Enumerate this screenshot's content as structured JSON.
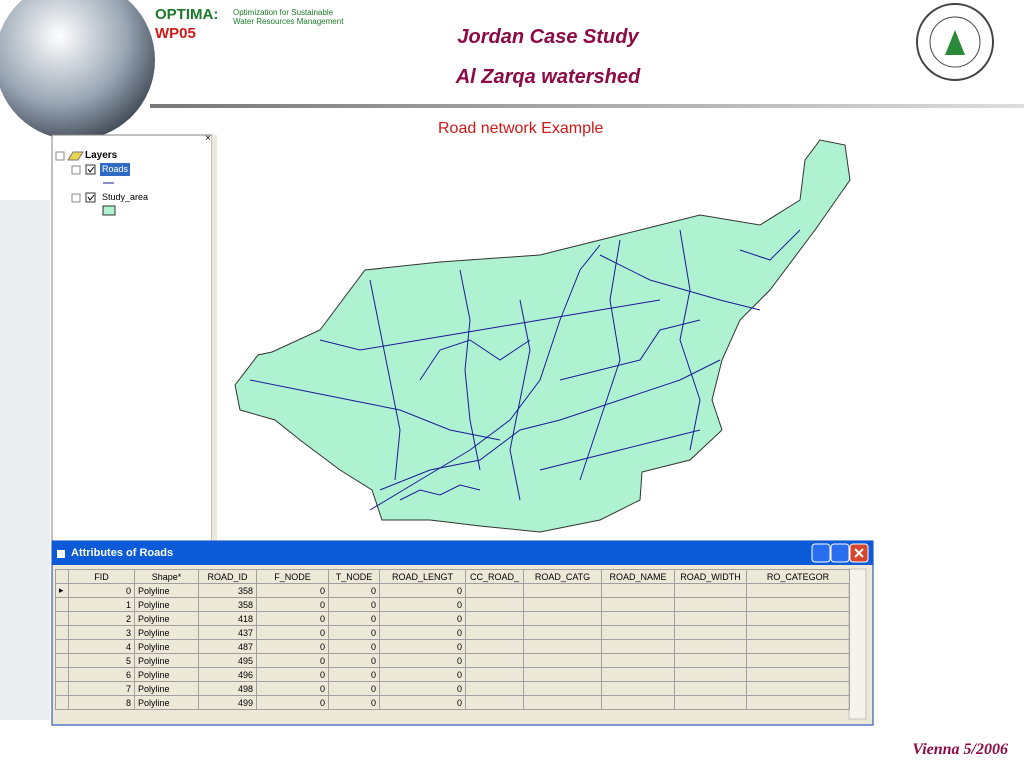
{
  "header": {
    "logo_name": "OPTIMA:",
    "project": "WP05",
    "tagline": [
      "Optimization for Sustainable",
      "Water Resources Management"
    ],
    "title": "Jordan Case Study",
    "subtitle": "Al Zarqa watershed"
  },
  "slide_heading": "Road network Example",
  "toc": {
    "root": "Layers",
    "layers": [
      "Roads",
      "Study_area"
    ]
  },
  "window": {
    "title": "Attributes of Roads"
  },
  "table": {
    "columns": [
      "FID",
      "Shape*",
      "ROAD_ID",
      "F_NODE",
      "T_NODE",
      "ROAD_LENGT",
      "CC_ROAD_",
      "ROAD_CATG",
      "ROAD_NAME",
      "ROAD_WIDTH",
      "RO_CATEGOR"
    ],
    "rows": [
      [
        0,
        "Polyline",
        358,
        0,
        0,
        0
      ],
      [
        1,
        "Polyline",
        358,
        0,
        0,
        0
      ],
      [
        2,
        "Polyline",
        418,
        0,
        0,
        0
      ],
      [
        3,
        "Polyline",
        437,
        0,
        0,
        0
      ],
      [
        4,
        "Polyline",
        487,
        0,
        0,
        0
      ],
      [
        5,
        "Polyline",
        495,
        0,
        0,
        0
      ],
      [
        6,
        "Polyline",
        496,
        0,
        0,
        0
      ],
      [
        7,
        "Polyline",
        498,
        0,
        0,
        0
      ],
      [
        8,
        "Polyline",
        499,
        0,
        0,
        0
      ]
    ]
  },
  "footer": "Vienna 5/2006"
}
